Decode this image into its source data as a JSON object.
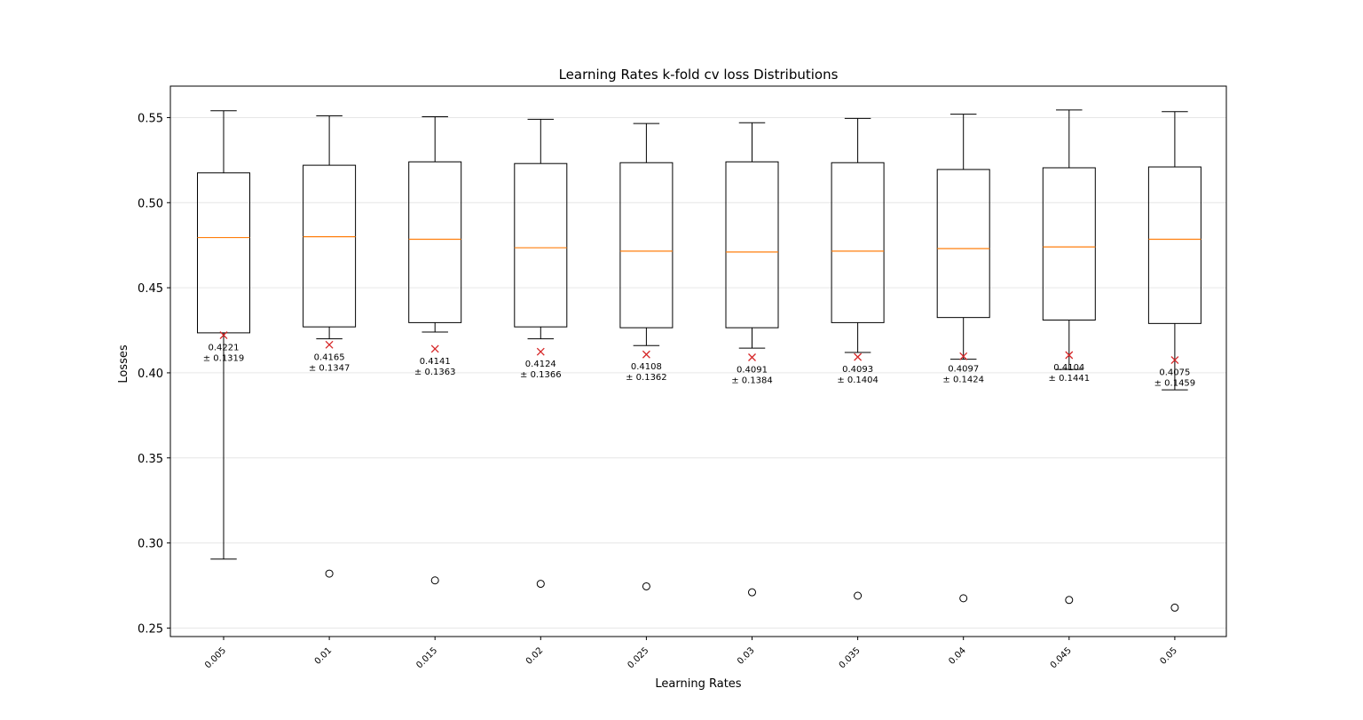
{
  "chart_data": {
    "type": "box",
    "title": "Learning Rates k-fold cv loss Distributions",
    "xlabel": "Learning Rates",
    "ylabel": "Losses",
    "ylim": [
      0.245,
      0.5685
    ],
    "yticks": [
      0.25,
      0.3,
      0.35,
      0.4,
      0.45,
      0.5,
      0.55
    ],
    "ytick_labels": [
      "0.25",
      "0.30",
      "0.35",
      "0.40",
      "0.45",
      "0.50",
      "0.55"
    ],
    "grid": "horizontal",
    "categories": [
      "0.005",
      "0.01",
      "0.015",
      "0.02",
      "0.025",
      "0.03",
      "0.035",
      "0.04",
      "0.045",
      "0.05"
    ],
    "boxes": [
      {
        "whisker_low": 0.2905,
        "q1": 0.4235,
        "median": 0.4795,
        "q3": 0.5175,
        "whisker_high": 0.554,
        "outliers": []
      },
      {
        "whisker_low": 0.42,
        "q1": 0.427,
        "median": 0.48,
        "q3": 0.522,
        "whisker_high": 0.551,
        "outliers": [
          0.282
        ]
      },
      {
        "whisker_low": 0.424,
        "q1": 0.4295,
        "median": 0.4785,
        "q3": 0.524,
        "whisker_high": 0.5505,
        "outliers": [
          0.278
        ]
      },
      {
        "whisker_low": 0.42,
        "q1": 0.427,
        "median": 0.4735,
        "q3": 0.523,
        "whisker_high": 0.549,
        "outliers": [
          0.276
        ]
      },
      {
        "whisker_low": 0.416,
        "q1": 0.4265,
        "median": 0.4715,
        "q3": 0.5235,
        "whisker_high": 0.5465,
        "outliers": [
          0.2745
        ]
      },
      {
        "whisker_low": 0.4145,
        "q1": 0.4265,
        "median": 0.471,
        "q3": 0.524,
        "whisker_high": 0.547,
        "outliers": [
          0.271
        ]
      },
      {
        "whisker_low": 0.412,
        "q1": 0.4295,
        "median": 0.4715,
        "q3": 0.5235,
        "whisker_high": 0.5495,
        "outliers": [
          0.269
        ]
      },
      {
        "whisker_low": 0.408,
        "q1": 0.4325,
        "median": 0.473,
        "q3": 0.5195,
        "whisker_high": 0.552,
        "outliers": [
          0.2675
        ]
      },
      {
        "whisker_low": 0.402,
        "q1": 0.431,
        "median": 0.474,
        "q3": 0.5205,
        "whisker_high": 0.5545,
        "outliers": [
          0.2665
        ]
      },
      {
        "whisker_low": 0.39,
        "q1": 0.429,
        "median": 0.4785,
        "q3": 0.521,
        "whisker_high": 0.5535,
        "outliers": [
          0.262
        ]
      }
    ],
    "means": [
      0.4221,
      0.4165,
      0.4141,
      0.4124,
      0.4108,
      0.4091,
      0.4093,
      0.4097,
      0.4104,
      0.4075
    ],
    "mean_labels": [
      {
        "line1": "0.4221",
        "line2": "± 0.1319"
      },
      {
        "line1": "0.4165",
        "line2": "± 0.1347"
      },
      {
        "line1": "0.4141",
        "line2": "± 0.1363"
      },
      {
        "line1": "0.4124",
        "line2": "± 0.1366"
      },
      {
        "line1": "0.4108",
        "line2": "± 0.1362"
      },
      {
        "line1": "0.4091",
        "line2": "± 0.1384"
      },
      {
        "line1": "0.4093",
        "line2": "± 0.1404"
      },
      {
        "line1": "0.4097",
        "line2": "± 0.1424"
      },
      {
        "line1": "0.4104",
        "line2": "± 0.1441"
      },
      {
        "line1": "0.4075",
        "line2": "± 0.1459"
      }
    ],
    "colors": {
      "box": "#000000",
      "median": "#ff7f0e",
      "mean_marker": "#d62728",
      "grid": "#e6e6e6"
    }
  }
}
